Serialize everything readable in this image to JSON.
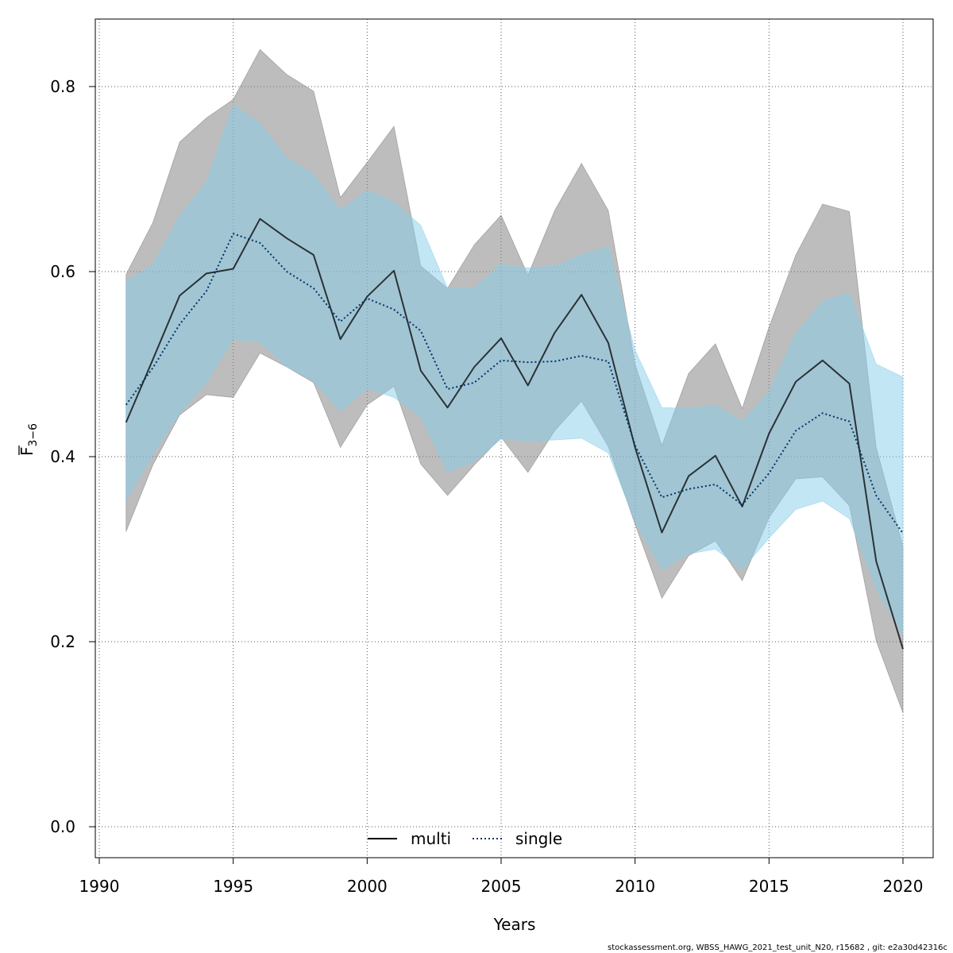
{
  "chart_data": {
    "type": "area",
    "title": "",
    "xlabel": "Years",
    "ylabel": "F",
    "ylabel_subscript": "3−6",
    "xlim": [
      1990,
      2020
    ],
    "ylim": [
      0.0,
      0.8
    ],
    "x_ticks": [
      1990,
      1995,
      2000,
      2005,
      2010,
      2015,
      2020
    ],
    "x_tick_labels": [
      "1990",
      "1995",
      "2000",
      "2005",
      "2010",
      "2015",
      "2020"
    ],
    "y_ticks": [
      0.0,
      0.2,
      0.4,
      0.6,
      0.8
    ],
    "y_tick_labels": [
      "0.0",
      "0.2",
      "0.4",
      "0.6",
      "0.8"
    ],
    "grid": true,
    "legend_position": "bottom-center",
    "x": [
      1991,
      1992,
      1993,
      1994,
      1995,
      1996,
      1997,
      1998,
      1999,
      2000,
      2001,
      2002,
      2003,
      2004,
      2005,
      2006,
      2007,
      2008,
      2009,
      2010,
      2011,
      2012,
      2013,
      2014,
      2015,
      2016,
      2017,
      2018,
      2019,
      2020
    ],
    "series": [
      {
        "name": "multi",
        "line_style": "solid",
        "line_color": "#000000",
        "band_color": "#808080",
        "values": [
          0.437,
          0.505,
          0.574,
          0.598,
          0.603,
          0.657,
          0.636,
          0.618,
          0.527,
          0.573,
          0.601,
          0.493,
          0.453,
          0.497,
          0.528,
          0.477,
          0.534,
          0.575,
          0.523,
          0.41,
          0.318,
          0.379,
          0.401,
          0.346,
          0.425,
          0.481,
          0.504,
          0.479,
          0.287,
          0.192
        ],
        "upper": [
          0.597,
          0.653,
          0.74,
          0.766,
          0.786,
          0.84,
          0.813,
          0.795,
          0.68,
          0.718,
          0.757,
          0.606,
          0.582,
          0.629,
          0.661,
          0.596,
          0.666,
          0.717,
          0.666,
          0.5,
          0.412,
          0.49,
          0.522,
          0.452,
          0.54,
          0.618,
          0.673,
          0.665,
          0.41,
          0.303
        ],
        "lower": [
          0.319,
          0.391,
          0.445,
          0.467,
          0.464,
          0.512,
          0.497,
          0.48,
          0.41,
          0.456,
          0.476,
          0.392,
          0.358,
          0.391,
          0.421,
          0.383,
          0.428,
          0.46,
          0.411,
          0.327,
          0.247,
          0.293,
          0.309,
          0.266,
          0.334,
          0.376,
          0.378,
          0.347,
          0.201,
          0.123
        ]
      },
      {
        "name": "single",
        "line_style": "dotted",
        "line_color": "#003366",
        "band_color": "#87ceeb",
        "values": [
          0.456,
          0.496,
          0.543,
          0.579,
          0.641,
          0.631,
          0.6,
          0.582,
          0.546,
          0.571,
          0.559,
          0.536,
          0.473,
          0.48,
          0.504,
          0.502,
          0.503,
          0.509,
          0.503,
          0.412,
          0.356,
          0.365,
          0.37,
          0.348,
          0.382,
          0.428,
          0.447,
          0.438,
          0.358,
          0.317
        ],
        "upper": [
          0.589,
          0.608,
          0.66,
          0.697,
          0.78,
          0.76,
          0.723,
          0.705,
          0.666,
          0.688,
          0.675,
          0.65,
          0.582,
          0.582,
          0.608,
          0.604,
          0.606,
          0.618,
          0.627,
          0.515,
          0.453,
          0.452,
          0.456,
          0.438,
          0.47,
          0.533,
          0.568,
          0.577,
          0.5,
          0.486
        ],
        "lower": [
          0.352,
          0.403,
          0.447,
          0.48,
          0.527,
          0.524,
          0.497,
          0.482,
          0.449,
          0.474,
          0.464,
          0.443,
          0.383,
          0.395,
          0.419,
          0.417,
          0.418,
          0.42,
          0.404,
          0.33,
          0.278,
          0.295,
          0.3,
          0.278,
          0.312,
          0.343,
          0.352,
          0.333,
          0.257,
          0.207
        ]
      }
    ]
  },
  "footer": {
    "text": "stockassessment.org, WBSS_HAWG_2021_test_unit_N20, r15682 , git: e2a30d42316c"
  }
}
